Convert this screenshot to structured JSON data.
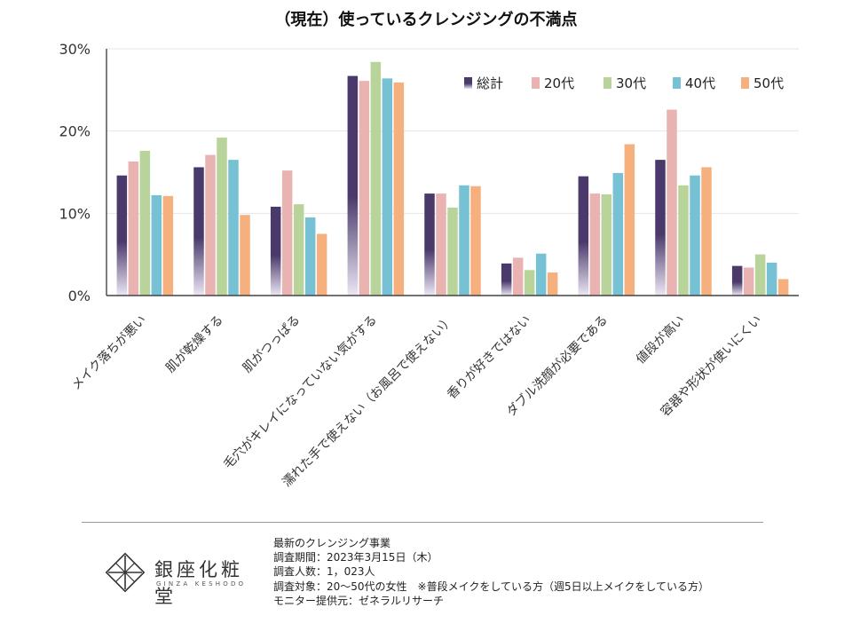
{
  "chart_data": {
    "type": "bar",
    "title": "（現在）使っているクレンジングの不満点",
    "xlabel": "",
    "ylabel": "",
    "ylim": [
      0,
      30
    ],
    "yticks": [
      "0%",
      "10%",
      "20%",
      "30%"
    ],
    "ytick_values": [
      0,
      10,
      20,
      30
    ],
    "grid": true,
    "legend_position": "top-right",
    "categories": [
      "メイク落ちが悪い",
      "肌が乾燥する",
      "肌がつっぱる",
      "毛穴がキレイになっていない気がする",
      "濡れた手で使えない（お風呂で使えない）",
      "香りが好きではない",
      "ダブル洗顔が必要である",
      "値段が高い",
      "容器や形状が使いにくい"
    ],
    "series": [
      {
        "name": "総計",
        "color": "#4a3a6b",
        "values": [
          14.6,
          15.6,
          10.8,
          26.7,
          12.4,
          3.9,
          14.5,
          16.5,
          3.6
        ]
      },
      {
        "name": "20代",
        "color": "#e8b3b0",
        "values": [
          16.3,
          17.1,
          15.2,
          26.1,
          12.4,
          4.6,
          12.4,
          22.6,
          3.4
        ]
      },
      {
        "name": "30代",
        "color": "#b9d49a",
        "values": [
          17.6,
          19.2,
          11.1,
          28.4,
          10.7,
          3.1,
          12.3,
          13.4,
          5.0
        ]
      },
      {
        "name": "40代",
        "color": "#76c1d4",
        "values": [
          12.2,
          16.5,
          9.5,
          26.4,
          13.4,
          5.1,
          14.9,
          14.6,
          4.0
        ]
      },
      {
        "name": "50代",
        "color": "#f6b07d",
        "values": [
          12.1,
          9.8,
          7.5,
          25.9,
          13.3,
          2.8,
          18.4,
          15.6,
          2.0
        ]
      }
    ]
  },
  "brand": {
    "name": "銀座化粧堂",
    "romanized": "GINZA KESHODO"
  },
  "notes": [
    "最新のクレンジング事業",
    "調査期間：2023年3月15日（木）",
    "調査人数：1，023人",
    "調査対象：20～50代の女性　※普段メイクをしている方（週5日以上メイクをしている方）",
    "モニター提供元：ゼネラルリサーチ"
  ]
}
